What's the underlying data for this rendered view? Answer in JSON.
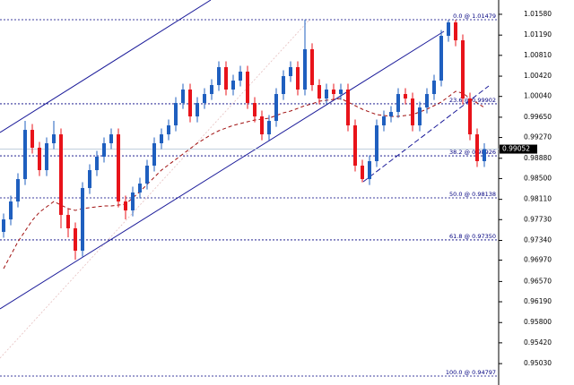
{
  "chart_data": {
    "type": "candlestick",
    "ylim": [
      0.94629,
      1.01848
    ],
    "yticks": [
      {
        "value": 1.0158,
        "label": "1.01580"
      },
      {
        "value": 1.0119,
        "label": "1.01190"
      },
      {
        "value": 1.0081,
        "label": "1.00810"
      },
      {
        "value": 1.0042,
        "label": "1.00420"
      },
      {
        "value": 1.0004,
        "label": "1.00040"
      },
      {
        "value": 0.9965,
        "label": "0.99650"
      },
      {
        "value": 0.9927,
        "label": "0.99270"
      },
      {
        "value": 0.9888,
        "label": "0.98880"
      },
      {
        "value": 0.985,
        "label": "0.98500"
      },
      {
        "value": 0.9811,
        "label": "0.98110"
      },
      {
        "value": 0.9773,
        "label": "0.97730"
      },
      {
        "value": 0.9734,
        "label": "0.97340"
      },
      {
        "value": 0.9697,
        "label": "0.96970"
      },
      {
        "value": 0.9657,
        "label": "0.96570"
      },
      {
        "value": 0.9619,
        "label": "0.96190"
      },
      {
        "value": 0.958,
        "label": "0.95800"
      },
      {
        "value": 0.9542,
        "label": "0.95420"
      },
      {
        "value": 0.9503,
        "label": "0.95030"
      }
    ],
    "up_color": "#1f5fbf",
    "down_color": "#e8131a",
    "open": [
      0.975,
      0.97734,
      0.9807,
      0.9849,
      0.99413,
      0.99078,
      0.98658,
      0.99162,
      0.99329,
      0.97818,
      0.97567,
      0.97147,
      0.98322,
      0.98658,
      0.9891,
      0.99162,
      0.99329,
      0.9807,
      0.97902,
      0.98238,
      0.98406,
      0.98742,
      0.99162,
      0.99329,
      0.99497,
      0.99917,
      1.00169,
      0.99665,
      0.99917,
      1.00085,
      1.00253,
      1.00589,
      1.00169,
      1.00337,
      1.00505,
      0.99917,
      0.99665,
      0.99329,
      0.99581,
      1.00085,
      1.00421,
      1.00589,
      1.00169,
      1.00925,
      1.00253,
      1.00001,
      1.00169,
      1.00085,
      1.00169,
      0.99497,
      0.98742,
      0.9849,
      0.98826,
      0.99497,
      0.99665,
      0.99749,
      1.00085,
      1.00001,
      0.99497,
      0.99833,
      1.00085,
      1.00337,
      1.01176,
      1.01428,
      1.01092,
      1.00001,
      0.99329,
      0.98826
    ],
    "high": [
      0.97844,
      0.9818,
      0.986,
      0.99581,
      0.99523,
      0.99188,
      0.99272,
      0.99581,
      0.99439,
      0.97928,
      0.97677,
      0.98432,
      0.98768,
      0.9902,
      0.99272,
      0.99439,
      0.99439,
      0.9818,
      0.98348,
      0.98516,
      0.98852,
      0.99272,
      0.99439,
      0.99607,
      1.00027,
      1.00279,
      1.00279,
      1.00027,
      1.00195,
      1.00363,
      1.00699,
      1.00699,
      1.00447,
      1.00615,
      1.00615,
      1.00027,
      0.99775,
      0.99691,
      1.00195,
      1.00531,
      1.00699,
      1.00699,
      1.0148,
      1.01035,
      1.00363,
      1.00279,
      1.00279,
      1.00279,
      1.00279,
      0.99607,
      0.98852,
      0.98936,
      0.99607,
      0.99775,
      0.99859,
      1.00195,
      1.00195,
      1.00111,
      0.99943,
      1.00195,
      1.00447,
      1.01286,
      1.01479,
      1.01479,
      1.01202,
      1.00111,
      0.99439,
      0.99162
    ],
    "low": [
      0.9739,
      0.97624,
      0.9796,
      0.9838,
      0.98968,
      0.98548,
      0.98548,
      0.99052,
      0.97567,
      0.97398,
      0.96979,
      0.97037,
      0.98212,
      0.98548,
      0.988,
      0.99052,
      0.9796,
      0.97734,
      0.97792,
      0.98128,
      0.98296,
      0.98632,
      0.99052,
      0.99219,
      0.99387,
      0.99807,
      0.99555,
      0.99555,
      0.99807,
      0.99975,
      1.00143,
      1.00059,
      1.00059,
      1.00227,
      0.99807,
      0.99555,
      0.99219,
      0.99219,
      0.99471,
      0.99975,
      1.00311,
      1.00059,
      1.00059,
      1.00143,
      0.99891,
      0.99891,
      0.99975,
      0.99975,
      0.99387,
      0.98632,
      0.9843,
      0.9838,
      0.98716,
      0.99387,
      0.99555,
      0.99639,
      0.99891,
      0.99387,
      0.99387,
      0.99723,
      0.99975,
      1.00227,
      1.01066,
      1.00982,
      0.99891,
      0.99219,
      0.98716,
      0.98716
    ],
    "close": [
      0.97734,
      0.9807,
      0.9849,
      0.99413,
      0.99078,
      0.98658,
      0.99162,
      0.99329,
      0.97818,
      0.97567,
      0.97147,
      0.98322,
      0.98658,
      0.9891,
      0.99162,
      0.99329,
      0.9807,
      0.97902,
      0.98238,
      0.98406,
      0.98742,
      0.99162,
      0.99329,
      0.99497,
      0.99917,
      1.00169,
      0.99665,
      0.99917,
      1.00085,
      1.00253,
      1.00589,
      1.00169,
      1.00337,
      1.00505,
      0.99917,
      0.99665,
      0.99329,
      0.99581,
      1.00085,
      1.00421,
      1.00589,
      1.00169,
      1.00925,
      1.00253,
      1.00001,
      1.00169,
      1.00085,
      1.00169,
      0.99497,
      0.98742,
      0.9849,
      0.98826,
      0.99497,
      0.99665,
      0.99749,
      1.00085,
      1.00001,
      0.99497,
      0.99833,
      1.00085,
      1.00337,
      1.01176,
      1.01428,
      1.01092,
      1.00001,
      0.99329,
      0.98826,
      0.99052
    ],
    "moving_average": {
      "color": "#a01010",
      "values": [
        0.96811,
        0.97063,
        0.97315,
        0.97516,
        0.97718,
        0.97869,
        0.9797,
        0.9807,
        0.98003,
        0.97936,
        0.97902,
        0.97936,
        0.97953,
        0.9797,
        0.97986,
        0.97986,
        0.98003,
        0.9802,
        0.98137,
        0.98255,
        0.98389,
        0.98524,
        0.98658,
        0.98759,
        0.98859,
        0.9896,
        0.99061,
        0.99162,
        0.99246,
        0.99329,
        0.99397,
        0.99447,
        0.99497,
        0.99531,
        0.99565,
        0.99598,
        0.99615,
        0.99632,
        0.99682,
        0.99733,
        0.99766,
        0.99816,
        0.99867,
        0.999,
        0.99951,
        0.99968,
        0.99984,
        1.00001,
        0.99934,
        0.99867,
        0.998,
        0.99749,
        0.99699,
        0.99682,
        0.99665,
        0.99665,
        0.99682,
        0.99699,
        0.99749,
        0.998,
        0.99867,
        0.99934,
        1.00035,
        1.00135,
        1.00102,
        1.00001,
        0.99917,
        0.99833
      ]
    },
    "fib_color": "#000080",
    "fib_levels": [
      {
        "value": 1.01479,
        "label": "0.0 @ 1.01479"
      },
      {
        "value": 0.99902,
        "label": "23.6 @ 0.99902"
      },
      {
        "value": 0.98926,
        "label": "38.2 @ 0.98926"
      },
      {
        "value": 0.98138,
        "label": "50.0 @ 0.98138"
      },
      {
        "value": 0.9735,
        "label": "61.8 @ 0.97350"
      },
      {
        "value": 0.94797,
        "label": "100.0 @ 0.94797"
      }
    ],
    "current_price": 0.99052
  }
}
